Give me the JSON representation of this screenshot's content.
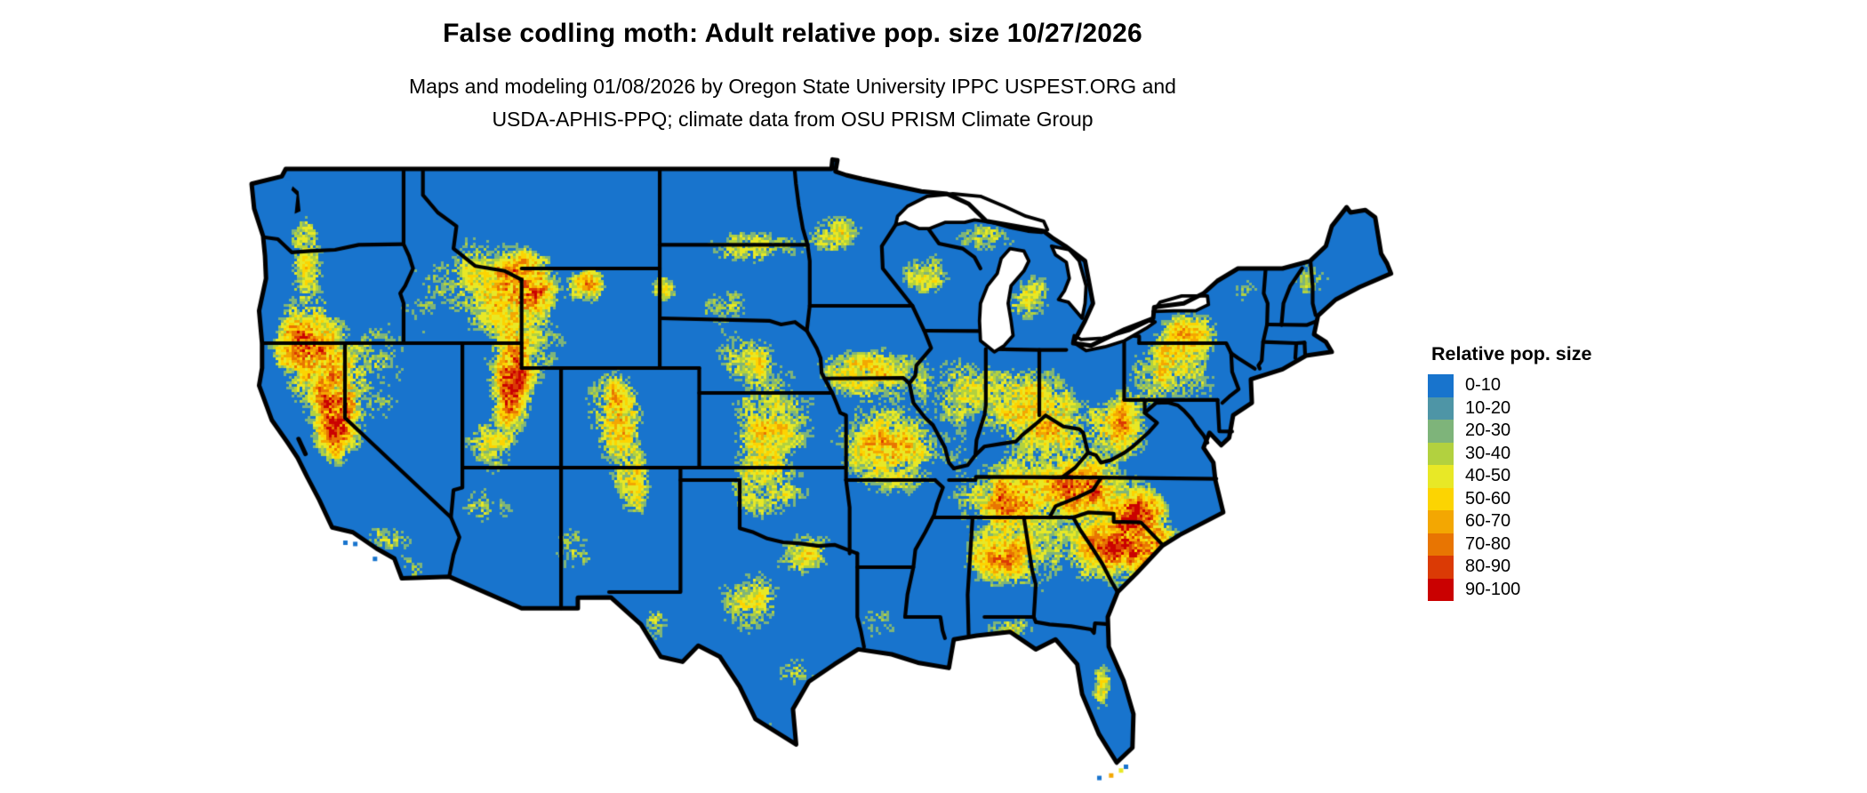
{
  "header": {
    "title": "False codling moth: Adult relative pop. size 10/27/2026",
    "subtitle_line1": "Maps and modeling 01/08/2026 by Oregon State University IPPC USPEST.ORG and",
    "subtitle_line2": "USDA-APHIS-PPQ; climate data from OSU PRISM Climate Group"
  },
  "legend": {
    "title": "Relative pop. size",
    "items": [
      {
        "label": "0-10",
        "color": "#1874CD"
      },
      {
        "label": "10-20",
        "color": "#4E95A6"
      },
      {
        "label": "20-30",
        "color": "#7EB47A"
      },
      {
        "label": "30-40",
        "color": "#B2D13F"
      },
      {
        "label": "40-50",
        "color": "#E8E826"
      },
      {
        "label": "50-60",
        "color": "#FCD402"
      },
      {
        "label": "60-70",
        "color": "#F3A702"
      },
      {
        "label": "70-80",
        "color": "#E87502"
      },
      {
        "label": "80-90",
        "color": "#DB3A05"
      },
      {
        "label": "90-100",
        "color": "#CA0101"
      }
    ]
  },
  "map": {
    "region": "Continental United States",
    "base_color": "#1874CD",
    "water_color": "#FFFFFF",
    "border_color": "#000000",
    "background": "#FFFFFF"
  }
}
